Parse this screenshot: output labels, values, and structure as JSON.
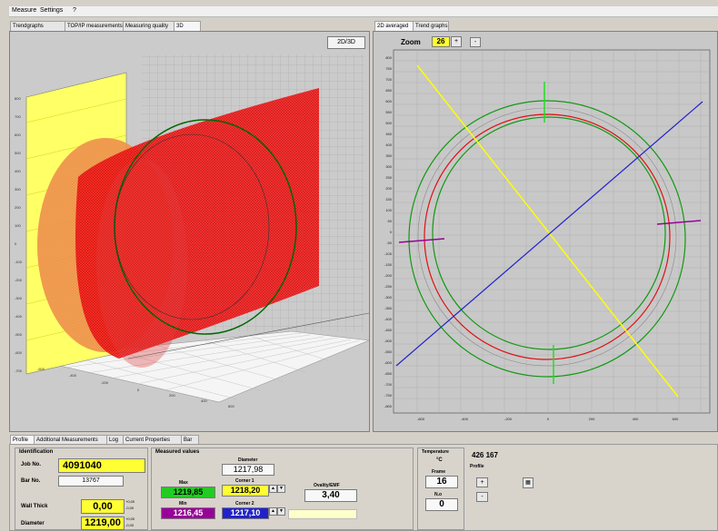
{
  "menu": {
    "measure": "Measure",
    "settings": "Settings",
    "help": "?"
  },
  "left_tabs": [
    "Trendgraphs",
    "TOP/IP measurements",
    "Measuring quality",
    "3D"
  ],
  "right_tabs": [
    "2D averaged",
    "Trend graphs"
  ],
  "view_toggle": "2D/3D",
  "zoom": {
    "label": "Zoom",
    "value": "26",
    "plus": "+",
    "minus": "-"
  },
  "bottom_tabs": [
    "Profile",
    "Additional Measurements",
    "Log",
    "Current Properties",
    "Bar"
  ],
  "identification": {
    "title": "Identification",
    "job_label": "Job No.",
    "job_value": "4091040",
    "bar_label": "Bar No.",
    "bar_value": "13767",
    "wall_label": "Wall Thick",
    "wall_value": "0,00",
    "wall_tol_plus": "+0,00",
    "wall_tol_minus": "-0,00",
    "diam_label": "Diameter",
    "diam_value": "1219,00",
    "diam_tol_plus": "+0,00",
    "diam_tol_minus": "-0,00"
  },
  "measured": {
    "title": "Measured values",
    "diameter_label": "Diameter",
    "diameter_value": "1217,98",
    "max_label": "Max",
    "max_value": "1219,85",
    "min_label": "Min",
    "min_value": "1216,45",
    "corner1_label": "Corner 1",
    "corner1_value": "1218,20",
    "corner2_label": "Corner 2",
    "corner2_value": "1217,10",
    "ovality_label": "Ovality/EMF",
    "ovality_value": "3,40"
  },
  "temperature": {
    "title": "Temperature",
    "unit": "°C",
    "frame_label": "Frame",
    "frame_value": "16",
    "nr_label": "N.o",
    "nr_value": "0"
  },
  "profile": {
    "counter": "426 167",
    "label": "Profile",
    "plus": "+",
    "minus": "-"
  },
  "axis2d": {
    "y_ticks": [
      "800",
      "750",
      "700",
      "650",
      "600",
      "550",
      "500",
      "450",
      "400",
      "350",
      "300",
      "250",
      "200",
      "150",
      "100",
      "50",
      "0",
      "-50",
      "-100",
      "-150",
      "-200",
      "-250",
      "-300",
      "-350",
      "-400",
      "-450",
      "-500",
      "-550",
      "-600",
      "-650",
      "-700",
      "-750",
      "-800"
    ],
    "x_ticks": [
      "-600",
      "-400",
      "-200",
      "0",
      "200",
      "400",
      "600"
    ]
  },
  "axis3d": {
    "y_ticks": [
      "800",
      "700",
      "600",
      "500",
      "400",
      "300",
      "200",
      "100",
      "0",
      "-100",
      "-200",
      "-300",
      "-400",
      "-500",
      "-600",
      "-700"
    ],
    "x_ticks": [
      "-600",
      "-400",
      "-200",
      "0",
      "200",
      "400",
      "600"
    ]
  },
  "colors": {
    "window": "#d4d0c8",
    "plot_bg": "#c8c8c8",
    "yellow": "#ffff33",
    "green_value": "#22cc22",
    "purple_value": "#990099",
    "blue_value": "#2222cc",
    "red": "#ff0000",
    "green": "#009900",
    "blue": "#0000cc"
  }
}
